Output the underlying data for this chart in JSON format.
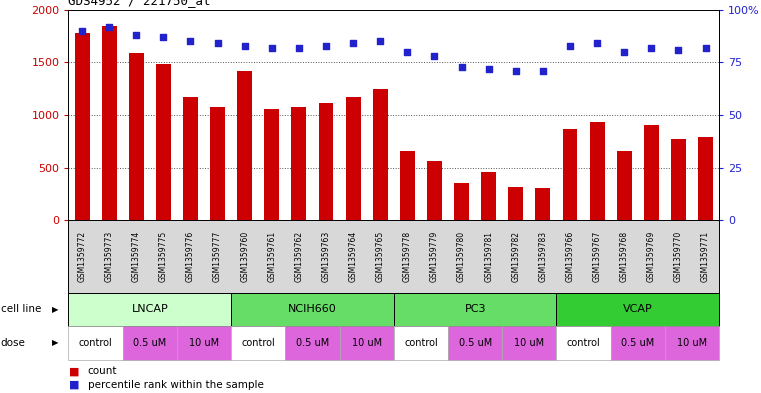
{
  "title": "GDS4952 / 221750_at",
  "samples": [
    "GSM1359772",
    "GSM1359773",
    "GSM1359774",
    "GSM1359775",
    "GSM1359776",
    "GSM1359777",
    "GSM1359760",
    "GSM1359761",
    "GSM1359762",
    "GSM1359763",
    "GSM1359764",
    "GSM1359765",
    "GSM1359778",
    "GSM1359779",
    "GSM1359780",
    "GSM1359781",
    "GSM1359782",
    "GSM1359783",
    "GSM1359766",
    "GSM1359767",
    "GSM1359768",
    "GSM1359769",
    "GSM1359770",
    "GSM1359771"
  ],
  "bar_values": [
    1780,
    1850,
    1590,
    1480,
    1170,
    1080,
    1420,
    1060,
    1080,
    1110,
    1170,
    1250,
    660,
    560,
    350,
    460,
    310,
    305,
    870,
    930,
    660,
    900,
    770,
    790
  ],
  "percentile_values": [
    90,
    92,
    88,
    87,
    85,
    84,
    83,
    82,
    82,
    83,
    84,
    85,
    80,
    78,
    73,
    72,
    71,
    71,
    83,
    84,
    80,
    82,
    81,
    82
  ],
  "bar_color": "#cc0000",
  "percentile_color": "#2222cc",
  "ylim_left": [
    0,
    2000
  ],
  "ylim_right": [
    0,
    100
  ],
  "yticks_left": [
    0,
    500,
    1000,
    1500,
    2000
  ],
  "yticks_right": [
    0,
    25,
    50,
    75,
    100
  ],
  "cell_lines": [
    {
      "name": "LNCAP",
      "start": 0,
      "end": 6,
      "color": "#ccffcc"
    },
    {
      "name": "NCIH660",
      "start": 6,
      "end": 12,
      "color": "#66dd66"
    },
    {
      "name": "PC3",
      "start": 12,
      "end": 18,
      "color": "#66dd66"
    },
    {
      "name": "VCAP",
      "start": 18,
      "end": 24,
      "color": "#33cc33"
    }
  ],
  "doses": [
    {
      "name": "control",
      "start": 0,
      "end": 2,
      "color": "#ffffff"
    },
    {
      "name": "0.5 uM",
      "start": 2,
      "end": 4,
      "color": "#dd66dd"
    },
    {
      "name": "10 uM",
      "start": 4,
      "end": 6,
      "color": "#dd66dd"
    },
    {
      "name": "control",
      "start": 6,
      "end": 8,
      "color": "#ffffff"
    },
    {
      "name": "0.5 uM",
      "start": 8,
      "end": 10,
      "color": "#dd66dd"
    },
    {
      "name": "10 uM",
      "start": 10,
      "end": 12,
      "color": "#dd66dd"
    },
    {
      "name": "control",
      "start": 12,
      "end": 14,
      "color": "#ffffff"
    },
    {
      "name": "0.5 uM",
      "start": 14,
      "end": 16,
      "color": "#dd66dd"
    },
    {
      "name": "10 uM",
      "start": 16,
      "end": 18,
      "color": "#dd66dd"
    },
    {
      "name": "control",
      "start": 18,
      "end": 20,
      "color": "#ffffff"
    },
    {
      "name": "0.5 uM",
      "start": 20,
      "end": 22,
      "color": "#dd66dd"
    },
    {
      "name": "10 uM",
      "start": 22,
      "end": 24,
      "color": "#dd66dd"
    }
  ],
  "bg_color": "#ffffff",
  "xtick_bg_color": "#d8d8d8",
  "grid_color": "#555555"
}
